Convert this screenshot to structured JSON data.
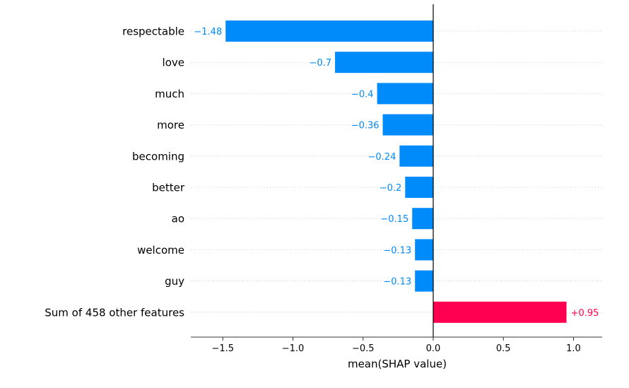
{
  "colors": {
    "negative": "#008bfb",
    "positive": "#ff0051",
    "axis": "#333333",
    "zero_line": "#000000"
  },
  "chart_data": {
    "type": "bar",
    "orientation": "horizontal",
    "xlabel": "mean(SHAP value)",
    "ylabel": "",
    "xlim": [
      -1.75,
      1.2
    ],
    "x_ticks": [
      {
        "value": -1.5,
        "label": "−1.5"
      },
      {
        "value": -1.0,
        "label": "−1.0"
      },
      {
        "value": -0.5,
        "label": "−0.5"
      },
      {
        "value": 0.0,
        "label": "0.0"
      },
      {
        "value": 0.5,
        "label": "0.5"
      },
      {
        "value": 1.0,
        "label": "1.0"
      }
    ],
    "categories": [
      "respectable",
      "love",
      "much",
      "more",
      "becoming",
      "better",
      "ao",
      "welcome",
      "guy",
      "Sum of 458 other features"
    ],
    "values": [
      -1.48,
      -0.7,
      -0.4,
      -0.36,
      -0.24,
      -0.2,
      -0.15,
      -0.13,
      -0.13,
      0.95
    ],
    "value_labels": [
      "−1.48",
      "−0.7",
      "−0.4",
      "−0.36",
      "−0.24",
      "−0.2",
      "−0.15",
      "−0.13",
      "−0.13",
      "+0.95"
    ],
    "grid": "dotted horizontal guide lines per row"
  }
}
